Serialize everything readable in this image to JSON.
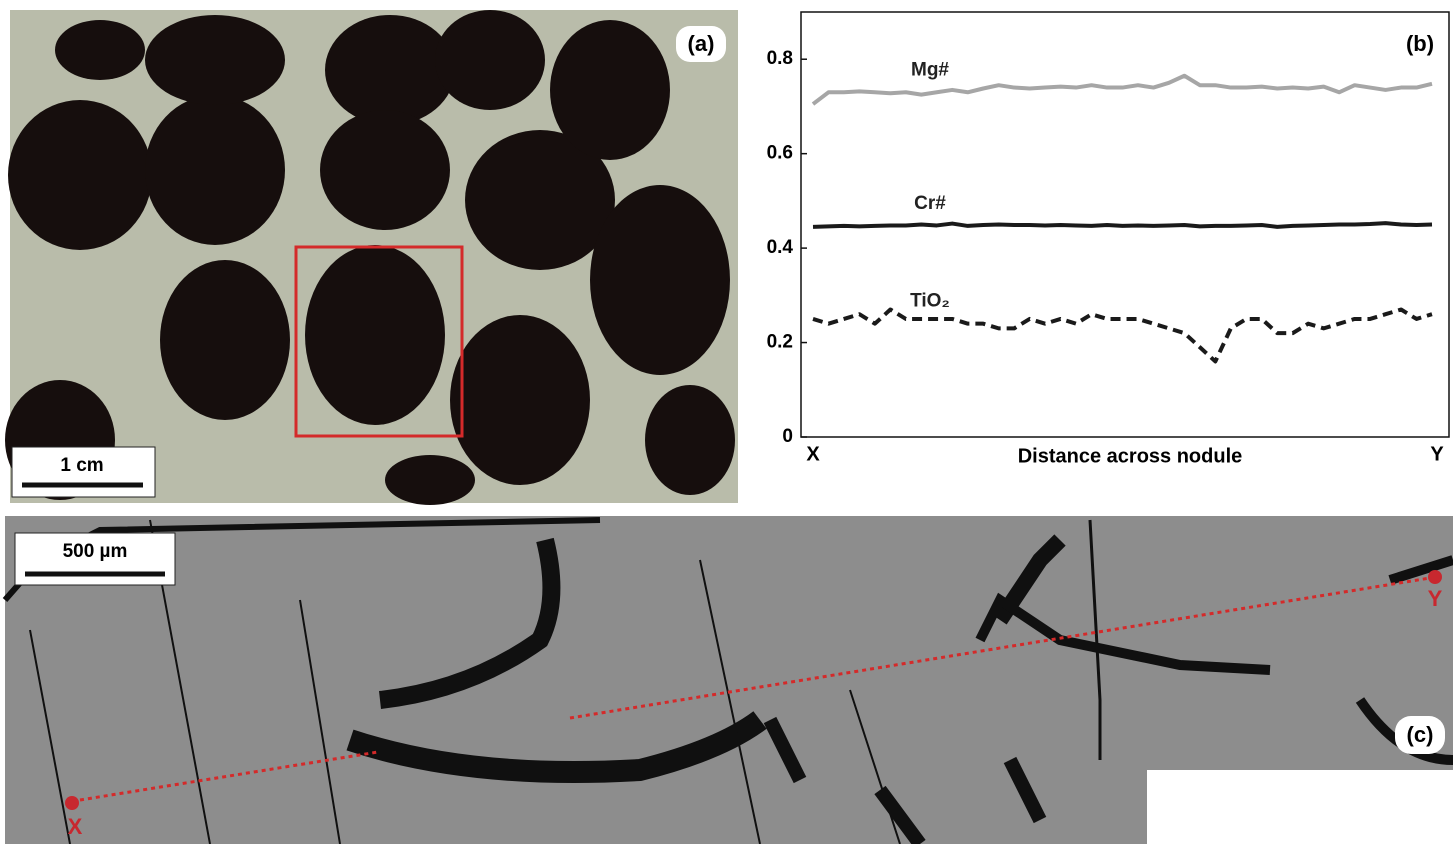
{
  "panel_a": {
    "label": "(a)",
    "scale_bar": "1 cm"
  },
  "chart_data": {
    "type": "line",
    "label": "(b)",
    "x_label": "Distance across nodule",
    "categories": [
      "X",
      null,
      null,
      null,
      null,
      null,
      null,
      null,
      null,
      null,
      null,
      null,
      null,
      null,
      null,
      null,
      null,
      null,
      null,
      null,
      null,
      null,
      null,
      null,
      null,
      null,
      null,
      null,
      null,
      null,
      null,
      null,
      null,
      null,
      null,
      null,
      null,
      null,
      null,
      null,
      "Y"
    ],
    "ylim": [
      0,
      0.9
    ],
    "yticks": [
      0,
      0.2,
      0.4,
      0.6,
      0.8
    ],
    "series": [
      {
        "name": "Mg#",
        "color": "#a6a6a6",
        "dash": "solid",
        "values": [
          0.705,
          0.73,
          0.73,
          0.732,
          0.73,
          0.728,
          0.73,
          0.725,
          0.73,
          0.735,
          0.73,
          0.738,
          0.745,
          0.74,
          0.738,
          0.74,
          0.742,
          0.74,
          0.745,
          0.74,
          0.74,
          0.745,
          0.74,
          0.75,
          0.765,
          0.745,
          0.745,
          0.74,
          0.74,
          0.742,
          0.738,
          0.74,
          0.738,
          0.742,
          0.73,
          0.745,
          0.74,
          0.735,
          0.74,
          0.74,
          0.748
        ]
      },
      {
        "name": "Cr#",
        "color": "#1a1a1a",
        "dash": "solid",
        "values": [
          0.445,
          0.446,
          0.447,
          0.446,
          0.447,
          0.448,
          0.448,
          0.45,
          0.448,
          0.452,
          0.447,
          0.449,
          0.45,
          0.449,
          0.449,
          0.448,
          0.449,
          0.448,
          0.447,
          0.449,
          0.447,
          0.448,
          0.447,
          0.448,
          0.449,
          0.446,
          0.447,
          0.447,
          0.448,
          0.449,
          0.445,
          0.447,
          0.448,
          0.449,
          0.45,
          0.45,
          0.451,
          0.453,
          0.45,
          0.449,
          0.45
        ]
      },
      {
        "name": "TiO₂",
        "color": "#1a1a1a",
        "dash": "dashed",
        "values": [
          0.25,
          0.24,
          0.25,
          0.26,
          0.24,
          0.27,
          0.25,
          0.25,
          0.25,
          0.25,
          0.24,
          0.24,
          0.23,
          0.23,
          0.25,
          0.24,
          0.25,
          0.24,
          0.26,
          0.25,
          0.25,
          0.25,
          0.24,
          0.23,
          0.22,
          0.19,
          0.16,
          0.23,
          0.25,
          0.25,
          0.22,
          0.22,
          0.24,
          0.23,
          0.24,
          0.25,
          0.25,
          0.26,
          0.27,
          0.25,
          0.26
        ]
      }
    ]
  },
  "panel_c": {
    "label": "(c)",
    "scale_bar": "500 µm",
    "start": "X",
    "end": "Y"
  }
}
